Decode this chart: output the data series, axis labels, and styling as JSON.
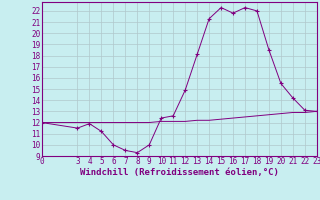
{
  "xlabel": "Windchill (Refroidissement éolien,°C)",
  "bg_color": "#c8eef0",
  "grid_color": "#b0c8cc",
  "line_color": "#800080",
  "marker_color": "#800080",
  "x": [
    0,
    3,
    4,
    5,
    6,
    7,
    8,
    9,
    10,
    11,
    12,
    13,
    14,
    15,
    16,
    17,
    18,
    19,
    20,
    21,
    22,
    23
  ],
  "y_windchill": [
    12.0,
    11.5,
    11.9,
    11.2,
    10.0,
    9.5,
    9.3,
    10.0,
    12.4,
    12.6,
    14.9,
    18.1,
    21.3,
    22.3,
    21.8,
    22.3,
    22.0,
    18.5,
    15.5,
    14.2,
    13.1,
    13.0
  ],
  "y_temp": [
    12.0,
    12.0,
    12.0,
    12.0,
    12.0,
    12.0,
    12.0,
    12.0,
    12.1,
    12.1,
    12.1,
    12.2,
    12.2,
    12.3,
    12.4,
    12.5,
    12.6,
    12.7,
    12.8,
    12.9,
    12.9,
    13.0
  ],
  "xlim": [
    0,
    23
  ],
  "ylim": [
    9,
    22.5
  ],
  "yticks": [
    9,
    10,
    11,
    12,
    13,
    14,
    15,
    16,
    17,
    18,
    19,
    20,
    21,
    22
  ],
  "xticks": [
    0,
    3,
    4,
    5,
    6,
    7,
    8,
    9,
    10,
    11,
    12,
    13,
    14,
    15,
    16,
    17,
    18,
    19,
    20,
    21,
    22,
    23
  ],
  "tick_fontsize": 5.5,
  "xlabel_fontsize": 6.5
}
